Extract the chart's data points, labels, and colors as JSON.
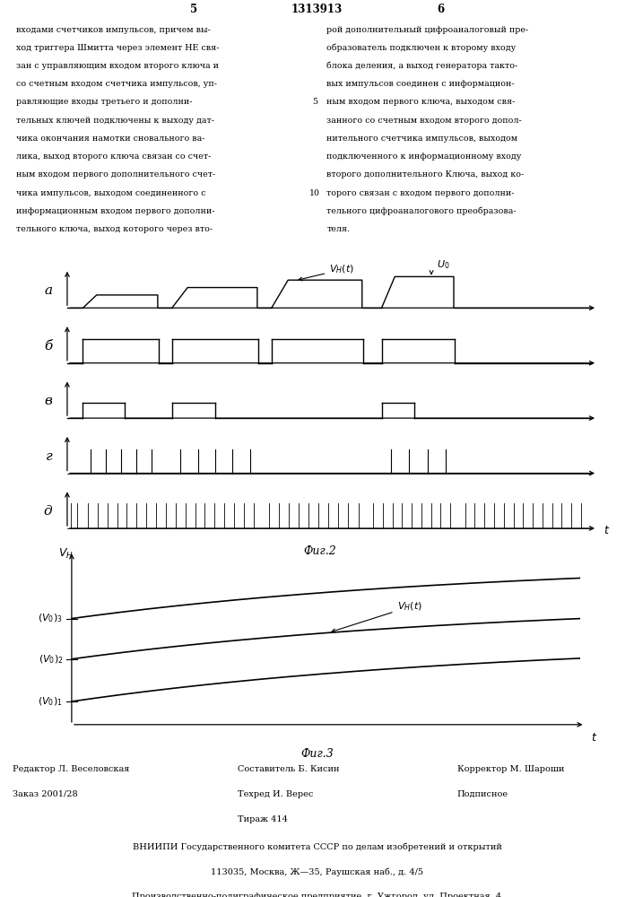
{
  "title": "1313913",
  "page_left_num": "5",
  "page_right_num": "6",
  "fig2_label": "Фиг.2",
  "fig3_label": "Фиг.3",
  "row_labels": [
    "а",
    "б",
    "в",
    "г",
    "д"
  ],
  "bg_color": "#ffffff",
  "line_color": "#000000",
  "col1_lines": [
    "входами счетчиков импульсов, причем вы-",
    "ход триггера Шмитта через элемент НЕ свя-",
    "зан с управляющим входом второго ключа и",
    "со счетным входом счетчика импульсов, уп-",
    "равляющие входы третьего и дополни-",
    "тельных ключей подключены к выходу дат-",
    "чика окончания намотки сновального ва-",
    "лика, выход второго ключа связан со счет-",
    "ным входом первого дополнительного счет-",
    "чика импульсов, выходом соединенного с",
    "информационным входом первого дополни-",
    "тельного ключа, выход которого через вто-"
  ],
  "col2_lines": [
    "рой дополнительный цифроаналоговый пре-",
    "образователь подключен к второму входу",
    "блока деления, а выход генератора такто-",
    "вых импульсов соединен с информацион-",
    "ным входом первого ключа, выходом свя-",
    "занного со счетным входом второго допол-",
    "нительного счетчика импульсов, выходом",
    "подключенного к информационному входу",
    "второго дополнительного Ключа, выход ко-",
    "торого связан с входом первого дополни-",
    "тельного цифроаналогового преобразова-",
    "теля."
  ]
}
